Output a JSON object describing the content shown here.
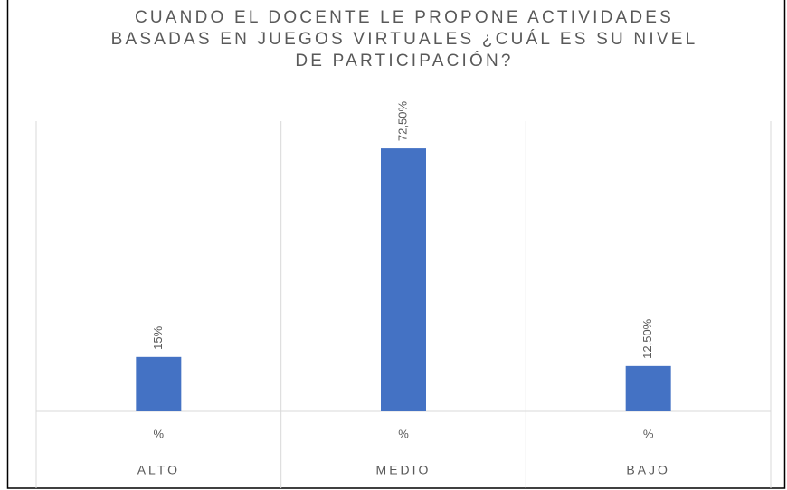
{
  "chart_data": {
    "type": "bar",
    "title": "CUANDO EL DOCENTE LE PROPONE ACTIVIDADES BASADAS EN JUEGOS VIRTUALES ¿CUÁL ES SU NIVEL DE PARTICIPACIÓN?",
    "categories": [
      "ALTO",
      "MEDIO",
      "BAJO"
    ],
    "subcategories": [
      "%",
      "%",
      "%"
    ],
    "values": [
      15,
      72.5,
      12.5
    ],
    "value_labels": [
      "15%",
      "72,50%",
      "12,50%"
    ],
    "color": "#4472c4",
    "ylim": [
      0,
      80
    ]
  }
}
